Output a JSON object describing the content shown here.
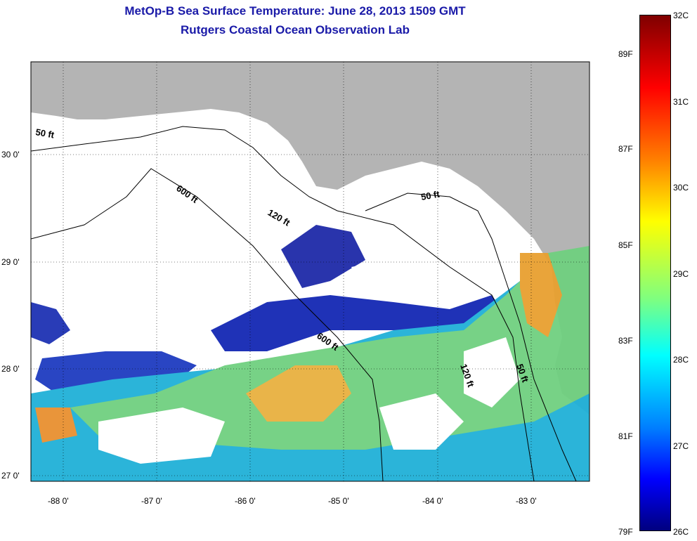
{
  "title": {
    "line1": "MetOp-B Sea Surface Temperature:  June 28, 2013 1509 GMT",
    "line2": "Rutgers Coastal Ocean Observation Lab"
  },
  "axes": {
    "lat_labels": [
      "30 0'",
      "29 0'",
      "28 0'",
      "27 0'"
    ],
    "lon_labels": [
      "-88 0'",
      "-87 0'",
      "-86 0'",
      "-85 0'",
      "-84 0'",
      "-83 0'"
    ]
  },
  "contours": {
    "c600a": "600 ft",
    "c120a": "120 ft",
    "c50a": "50 ft",
    "c600b": "600 ft",
    "c120b": "120 ft",
    "c50b": "50 ft",
    "c50c": "50 ft"
  },
  "colorbar": {
    "fahrenheit": [
      "89F",
      "87F",
      "85F",
      "83F",
      "81F",
      "79F"
    ],
    "celsius": [
      "32C",
      "31C",
      "30C",
      "29C",
      "28C",
      "27C",
      "26C"
    ],
    "min_c": 26,
    "max_c": 32
  },
  "colors": {
    "land": "#b4b4b4",
    "no_data": "#ffffff",
    "title": "#1a1aa8"
  }
}
